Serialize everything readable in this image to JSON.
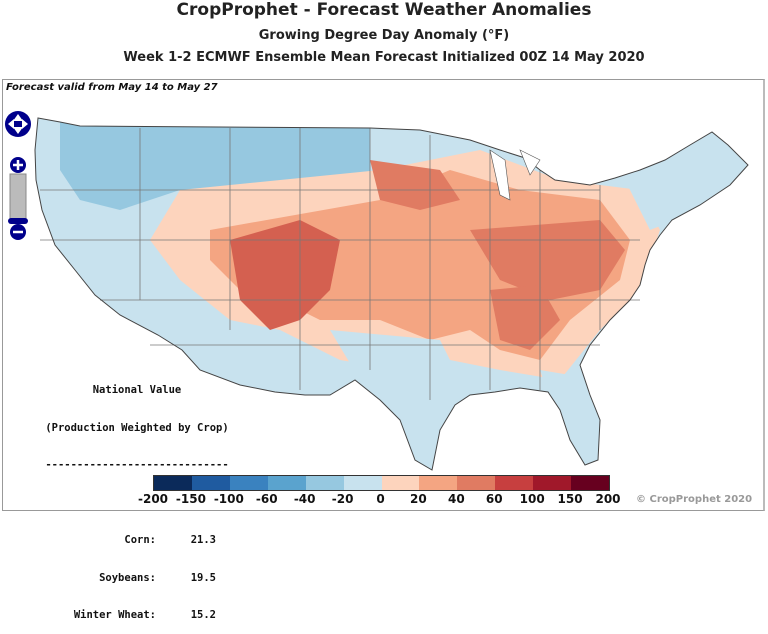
{
  "header": {
    "title": "CropProphet - Forecast Weather Anomalies",
    "subtitle": "Growing Degree Day Anomaly (°F)",
    "forecast_line": "Week 1-2 ECMWF Ensemble Mean Forecast Initialized 00Z 14 May 2020"
  },
  "map": {
    "valid_label": "Forecast valid from May 14 to May 27",
    "controls": [
      "pan-up-icon",
      "pan-left-icon",
      "pan-right-icon",
      "pan-down-icon",
      "zoom-in-icon",
      "zoom-slider",
      "zoom-out-icon"
    ],
    "approx_regions": [
      {
        "area": "northwest",
        "category": "-40 to -20"
      },
      {
        "area": "west/gulf/northeast",
        "category": "-20 to 0"
      },
      {
        "area": "southwest/plains",
        "category": "60 to 100"
      },
      {
        "area": "central/east",
        "category": "40 to 60"
      },
      {
        "area": "transition",
        "category": "0 to 20"
      }
    ]
  },
  "national_value": {
    "heading": "National Value",
    "subheading": "(Production Weighted by Crop)",
    "divider": "-----------------------------",
    "items": [
      {
        "label": "Corn:",
        "value": "21.3"
      },
      {
        "label": "Soybeans:",
        "value": "19.5"
      },
      {
        "label": "Winter Wheat:",
        "value": "15.2"
      }
    ]
  },
  "legend": {
    "ticks": [
      "-200",
      "-150",
      "-100",
      "-60",
      "-40",
      "-20",
      "0",
      "20",
      "40",
      "60",
      "100",
      "150",
      "200"
    ],
    "colors": [
      "#0b2a5a",
      "#1f5ba0",
      "#3a82bf",
      "#5aa3ce",
      "#96c8e0",
      "#c8e2ee",
      "#fdd4bd",
      "#f4a582",
      "#e07b62",
      "#c73f3f",
      "#a0182a",
      "#67001f"
    ]
  },
  "copyright": "© CropProphet 2020"
}
